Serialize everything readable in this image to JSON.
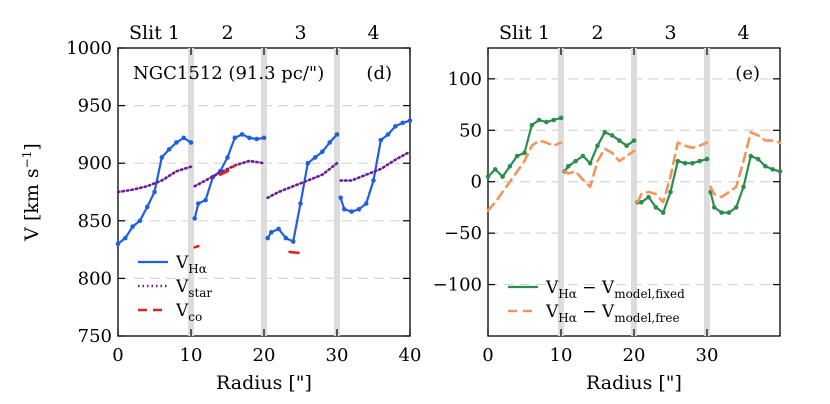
{
  "chart_data": [
    {
      "type": "line",
      "panel_label": "(d)",
      "annotation": "NGC1512 (91.3 pc/\")",
      "xlabel": "Radius [\"]",
      "ylabel": "V [km s",
      "ylabel_sup": "−1",
      "ylabel_close": "]",
      "xlim": [
        0,
        40
      ],
      "ylim": [
        750,
        1000
      ],
      "xticks": [
        "0",
        "10",
        "20",
        "30",
        "40"
      ],
      "yticks": [
        "750",
        "800",
        "850",
        "900",
        "950",
        "1000"
      ],
      "slits": [
        {
          "label": "Slit 1",
          "center": 5
        },
        {
          "label": "2",
          "center": 15
        },
        {
          "label": "3",
          "center": 25
        },
        {
          "label": "4",
          "center": 35
        }
      ],
      "slit_boundaries": [
        10,
        20,
        30
      ],
      "grid_y": [
        800,
        850,
        900,
        950
      ],
      "legend": [
        {
          "name": "V",
          "sub": "Hα",
          "color": "#1f5fe0",
          "style": "solid"
        },
        {
          "name": "V",
          "sub": "star",
          "color": "#6a1b9a",
          "style": "dotted"
        },
        {
          "name": "V",
          "sub": "co",
          "color": "#e0241b",
          "style": "dashed"
        }
      ],
      "series": [
        {
          "name": "V_Hα",
          "color": "#1f5fe0",
          "style": "solid",
          "segments": [
            [
              [
                0,
                830
              ],
              [
                1,
                835
              ],
              [
                2,
                845
              ],
              [
                3,
                850
              ],
              [
                4,
                862
              ],
              [
                5,
                875
              ],
              [
                6,
                905
              ],
              [
                7,
                912
              ],
              [
                8,
                918
              ],
              [
                9,
                922
              ],
              [
                10,
                918
              ]
            ],
            [
              [
                10.5,
                852
              ],
              [
                11,
                865
              ],
              [
                12,
                868
              ],
              [
                13,
                888
              ],
              [
                14,
                893
              ],
              [
                15,
                905
              ],
              [
                16,
                922
              ],
              [
                17,
                925
              ],
              [
                18,
                922
              ],
              [
                19,
                921
              ],
              [
                20,
                922
              ]
            ],
            [
              [
                20.5,
                835
              ],
              [
                21,
                840
              ],
              [
                22,
                843
              ],
              [
                23,
                835
              ],
              [
                24,
                832
              ],
              [
                25,
                865
              ],
              [
                26,
                900
              ],
              [
                27,
                905
              ],
              [
                28,
                910
              ],
              [
                29,
                918
              ],
              [
                30,
                925
              ]
            ],
            [
              [
                30.5,
                870
              ],
              [
                31,
                860
              ],
              [
                32,
                858
              ],
              [
                33,
                860
              ],
              [
                34,
                865
              ],
              [
                35,
                885
              ],
              [
                36,
                920
              ],
              [
                37,
                925
              ],
              [
                38,
                932
              ],
              [
                39,
                935
              ],
              [
                40,
                937
              ]
            ]
          ]
        },
        {
          "name": "V_star",
          "color": "#6a1b9a",
          "style": "dotted",
          "segments": [
            [
              [
                0,
                875
              ],
              [
                2,
                877
              ],
              [
                4,
                880
              ],
              [
                6,
                885
              ],
              [
                8,
                893
              ],
              [
                10,
                897
              ]
            ],
            [
              [
                10.5,
                880
              ],
              [
                12,
                885
              ],
              [
                14,
                892
              ],
              [
                16,
                898
              ],
              [
                18,
                902
              ],
              [
                20,
                900
              ]
            ],
            [
              [
                20.5,
                870
              ],
              [
                22,
                875
              ],
              [
                24,
                880
              ],
              [
                26,
                885
              ],
              [
                28,
                890
              ],
              [
                30,
                900
              ]
            ],
            [
              [
                30.5,
                885
              ],
              [
                32,
                885
              ],
              [
                34,
                890
              ],
              [
                36,
                895
              ],
              [
                38,
                903
              ],
              [
                40,
                910
              ]
            ]
          ]
        },
        {
          "name": "V_co",
          "color": "#e0241b",
          "style": "dashed",
          "segments": [
            [
              [
                10.5,
                827
              ],
              [
                11,
                828
              ]
            ],
            [
              [
                14,
                890
              ],
              [
                15,
                893
              ],
              [
                16,
                898
              ]
            ],
            [
              [
                23.5,
                823
              ],
              [
                25,
                822
              ]
            ]
          ]
        }
      ]
    },
    {
      "type": "line",
      "panel_label": "(e)",
      "xlabel": "Radius [\"]",
      "xlim": [
        0,
        40
      ],
      "ylim": [
        -150,
        130
      ],
      "xticks": [
        "0",
        "10",
        "20",
        "30"
      ],
      "yticks": [
        "−100",
        "−50",
        "0",
        "50",
        "100"
      ],
      "slits": [
        {
          "label": "Slit 1",
          "center": 5
        },
        {
          "label": "2",
          "center": 15
        },
        {
          "label": "3",
          "center": 25
        },
        {
          "label": "4",
          "center": 35
        }
      ],
      "slit_boundaries": [
        10,
        20,
        30
      ],
      "grid_y": [
        -100,
        -50,
        0,
        50,
        100
      ],
      "legend": [
        {
          "name": "V",
          "sub": "Hα",
          "minus": " − V",
          "sub2": "model,fixed",
          "color": "#2e8b4e",
          "style": "solid"
        },
        {
          "name": "V",
          "sub": "Hα",
          "minus": " − V",
          "sub2": "model,free",
          "color": "#f4945a",
          "style": "dashed"
        }
      ],
      "series": [
        {
          "name": "V_Hα − V_model,fixed",
          "color": "#2e8b4e",
          "style": "solid",
          "segments": [
            [
              [
                0,
                5
              ],
              [
                1,
                12
              ],
              [
                2,
                5
              ],
              [
                3,
                15
              ],
              [
                4,
                25
              ],
              [
                5,
                28
              ],
              [
                6,
                55
              ],
              [
                7,
                60
              ],
              [
                8,
                58
              ],
              [
                9,
                60
              ],
              [
                10,
                62
              ]
            ],
            [
              [
                10.5,
                10
              ],
              [
                11,
                15
              ],
              [
                12,
                20
              ],
              [
                13,
                25
              ],
              [
                14,
                18
              ],
              [
                15,
                35
              ],
              [
                16,
                48
              ],
              [
                17,
                45
              ],
              [
                18,
                40
              ],
              [
                19,
                35
              ],
              [
                20,
                40
              ]
            ],
            [
              [
                20.5,
                -20
              ],
              [
                21,
                -20
              ],
              [
                22,
                -15
              ],
              [
                23,
                -25
              ],
              [
                24,
                -30
              ],
              [
                25,
                -10
              ],
              [
                26,
                20
              ],
              [
                27,
                18
              ],
              [
                28,
                18
              ],
              [
                29,
                20
              ],
              [
                30,
                22
              ]
            ],
            [
              [
                30.5,
                -10
              ],
              [
                31,
                -25
              ],
              [
                32,
                -30
              ],
              [
                33,
                -30
              ],
              [
                34,
                -25
              ],
              [
                35,
                -5
              ],
              [
                36,
                25
              ],
              [
                37,
                22
              ],
              [
                38,
                15
              ],
              [
                39,
                12
              ],
              [
                40,
                10
              ]
            ]
          ]
        },
        {
          "name": "V_Hα − V_model,free",
          "color": "#f4945a",
          "style": "dashed",
          "segments": [
            [
              [
                0,
                -28
              ],
              [
                1,
                -20
              ],
              [
                2,
                -10
              ],
              [
                3,
                0
              ],
              [
                4,
                10
              ],
              [
                5,
                20
              ],
              [
                6,
                35
              ],
              [
                7,
                40
              ],
              [
                8,
                38
              ],
              [
                9,
                35
              ],
              [
                10,
                38
              ]
            ],
            [
              [
                10.5,
                10
              ],
              [
                11,
                8
              ],
              [
                12,
                10
              ],
              [
                13,
                2
              ],
              [
                14,
                -5
              ],
              [
                15,
                20
              ],
              [
                16,
                32
              ],
              [
                17,
                28
              ],
              [
                18,
                20
              ],
              [
                19,
                25
              ],
              [
                20,
                30
              ]
            ],
            [
              [
                20.5,
                -20
              ],
              [
                21,
                -12
              ],
              [
                22,
                -10
              ],
              [
                23,
                -12
              ],
              [
                24,
                -20
              ],
              [
                25,
                5
              ],
              [
                26,
                38
              ],
              [
                27,
                35
              ],
              [
                28,
                33
              ],
              [
                29,
                35
              ],
              [
                30,
                38
              ]
            ],
            [
              [
                30.5,
                -5
              ],
              [
                31,
                -12
              ],
              [
                32,
                -15
              ],
              [
                33,
                -10
              ],
              [
                34,
                -5
              ],
              [
                35,
                20
              ],
              [
                36,
                48
              ],
              [
                37,
                45
              ],
              [
                38,
                40
              ],
              [
                39,
                40
              ],
              [
                40,
                38
              ]
            ]
          ]
        }
      ]
    }
  ]
}
